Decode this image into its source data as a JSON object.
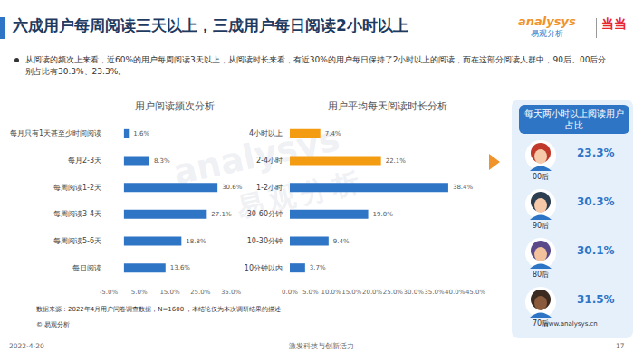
{
  "header": {
    "title": "六成用户每周阅读三天以上，三成用户每日阅读2小时以上",
    "logo": {
      "brand": "analysys",
      "name": "易观分析",
      "partner": "当当"
    }
  },
  "note": "从阅读的频次上来看，近60%的用户每周阅读3天以上，从阅读时长来看，有近30%的用户每日保持了2小时以上的阅读，而在这部分阅读人群中，90后、00后分别占比有30.3%、23.3%。",
  "watermark": {
    "brand": "analysys",
    "name": "易观分析"
  },
  "chart_data": [
    {
      "type": "bar",
      "title": "用户阅读频次分析",
      "orientation": "horizontal",
      "categories": [
        "每月只有1天甚至少时间阅读",
        "每月2-3天",
        "每周阅读1-2天",
        "每周阅读3-4天",
        "每周阅读5-6天",
        "每日阅读"
      ],
      "values": [
        1.6,
        8.3,
        30.6,
        27.1,
        18.8,
        13.6
      ],
      "value_labels": [
        "1.6%",
        "8.3%",
        "30.6%",
        "27.1%",
        "18.8%",
        "13.6%"
      ],
      "color": "#2e75c6",
      "xlim": [
        -5,
        35
      ],
      "xticks": [
        {
          "value": -5,
          "label": "-5.0%"
        },
        {
          "value": 5,
          "label": "5.0%"
        },
        {
          "value": 15,
          "label": "15.0%"
        },
        {
          "value": 25,
          "label": "25.0%"
        },
        {
          "value": 35,
          "label": "35.0%"
        }
      ],
      "grid": false,
      "data_labels": true
    },
    {
      "type": "bar",
      "title": "用户平均每天阅读时长分析",
      "orientation": "horizontal",
      "categories": [
        "4小时以上",
        "2-4小时",
        "1-2小时",
        "30-60分钟",
        "10-30分钟",
        "10分钟以内"
      ],
      "values": [
        7.4,
        22.1,
        38.4,
        19.0,
        9.4,
        3.7
      ],
      "value_labels": [
        "7.4%",
        "22.1%",
        "38.4%",
        "19.0%",
        "9.4%",
        "3.7%"
      ],
      "colors": [
        "#f39c12",
        "#f39c12",
        "#2e75c6",
        "#2e75c6",
        "#2e75c6",
        "#2e75c6"
      ],
      "xlim": [
        0,
        45
      ],
      "xticks": [
        {
          "value": 0,
          "label": "0.0%"
        },
        {
          "value": 5,
          "label": "5.0%"
        },
        {
          "value": 10,
          "label": "10.0%"
        },
        {
          "value": 15,
          "label": "15.0%"
        },
        {
          "value": 20,
          "label": "20.0%"
        },
        {
          "value": 25,
          "label": "25.0%"
        },
        {
          "value": 30,
          "label": "30.0%"
        },
        {
          "value": 35,
          "label": "35.0%"
        },
        {
          "value": 40,
          "label": "40.0%"
        },
        {
          "value": 45,
          "label": "45.0%"
        }
      ],
      "grid": false,
      "data_labels": true
    }
  ],
  "side_panel": {
    "title": "每天两小时以上阅读用户占比",
    "items": [
      {
        "group": "00后",
        "value": "23.3%"
      },
      {
        "group": "90后",
        "value": "30.3%"
      },
      {
        "group": "80后",
        "value": "30.1%"
      },
      {
        "group": "70后",
        "value": "31.5%"
      }
    ]
  },
  "source": "数据来源：2022年4月用户问卷调查数据，N=1600 ，本结论仅为本次调研结果的描述",
  "copyright": "© 易观分析",
  "website": "www.analysys.cn",
  "footer": {
    "date": "2022-4-20",
    "slogan": "激发科技与创新活力",
    "page": "17"
  }
}
